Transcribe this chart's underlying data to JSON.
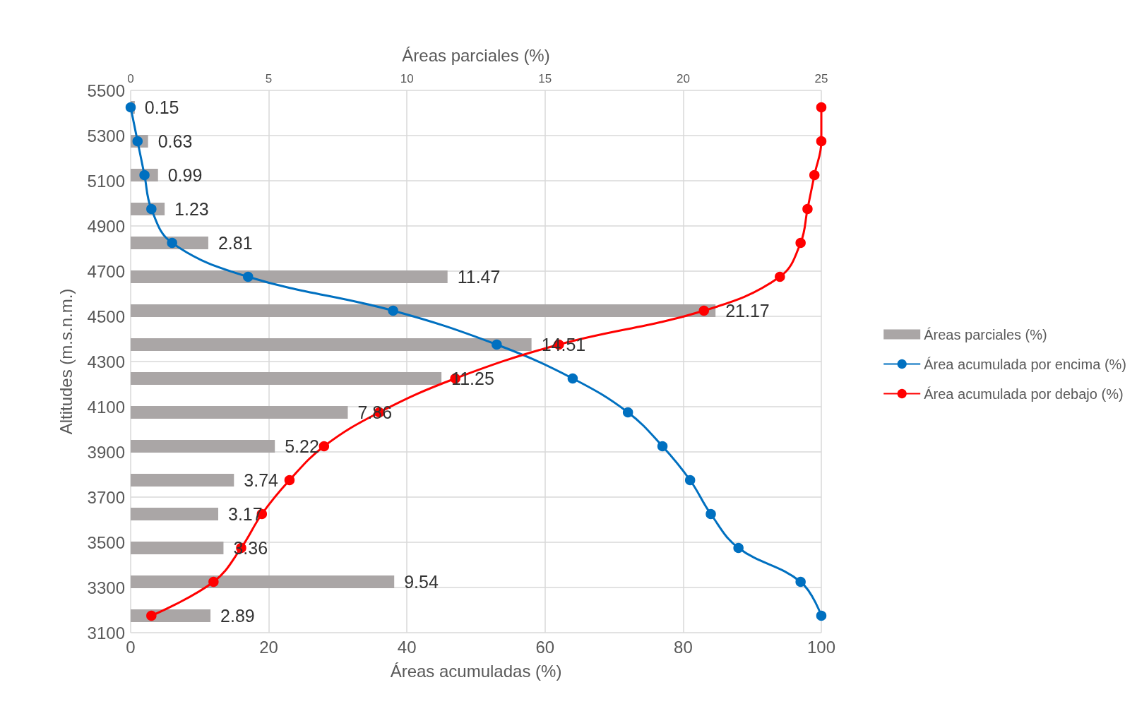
{
  "chart_data": {
    "type": "bar",
    "orientation": "horizontal",
    "xlabel": "Áreas acumuladas (%)",
    "x2label": "Áreas parciales (%)",
    "ylabel": "Altitudes (m.s.n.m.)",
    "x": [
      3175,
      3325,
      3475,
      3625,
      3775,
      3925,
      4075,
      4225,
      4375,
      4525,
      4675,
      4825,
      4975,
      5125,
      5275,
      5425
    ],
    "series": [
      {
        "name": "Áreas parciales (%)",
        "axis": "x2",
        "color": "#aaa6a6",
        "data_labels": true,
        "values": [
          2.89,
          9.54,
          3.36,
          3.17,
          3.74,
          5.22,
          7.86,
          11.25,
          14.51,
          21.17,
          11.47,
          2.81,
          1.23,
          0.99,
          0.63,
          0.15
        ]
      },
      {
        "name": "Área acumulada por encima (%)",
        "type": "line",
        "color": "#0070c0",
        "marker": "circle",
        "values": [
          100,
          97,
          88,
          84,
          81,
          77,
          72,
          64,
          53,
          38,
          17,
          6,
          3,
          2,
          1,
          0
        ]
      },
      {
        "name": "Área acumulada por debajo (%)",
        "type": "line",
        "color": "#ff0000",
        "marker": "circle",
        "values": [
          3,
          12,
          16,
          19,
          23,
          28,
          36,
          47,
          62,
          83,
          94,
          97,
          98,
          99,
          100,
          100
        ]
      }
    ],
    "xlim": [
      0,
      100
    ],
    "xticks": [
      0,
      20,
      40,
      60,
      80,
      100
    ],
    "x2lim": [
      0,
      25
    ],
    "x2ticks": [
      0,
      5,
      10,
      15,
      20,
      25
    ],
    "ylim": [
      3100,
      5500
    ],
    "yticks": [
      3100,
      3300,
      3500,
      3700,
      3900,
      4100,
      4300,
      4500,
      4700,
      4900,
      5100,
      5300,
      5500
    ],
    "grid": true,
    "legend": "right"
  }
}
